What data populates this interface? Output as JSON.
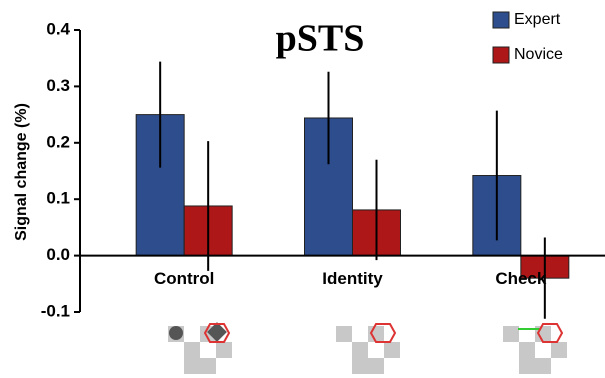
{
  "chart_data": {
    "type": "bar",
    "title": "pSTS",
    "y_label": "Signal change (%)",
    "categories": [
      "Control",
      "Identity",
      "Check"
    ],
    "series": [
      {
        "name": "Expert",
        "color": "#2d4d8c",
        "values": [
          0.25,
          0.244,
          0.142
        ],
        "errors": [
          0.094,
          0.082,
          0.115
        ]
      },
      {
        "name": "Novice",
        "color": "#ad1717",
        "values": [
          0.088,
          0.081,
          -0.04
        ],
        "errors": [
          0.115,
          0.089,
          0.072
        ]
      }
    ],
    "ylim": [
      -0.1,
      0.4
    ],
    "yticks": [
      -0.1,
      {
        "value": 0,
        "label": "0.0"
      },
      0.1,
      0.2,
      0.3,
      0.4
    ],
    "legend": "top-right"
  }
}
